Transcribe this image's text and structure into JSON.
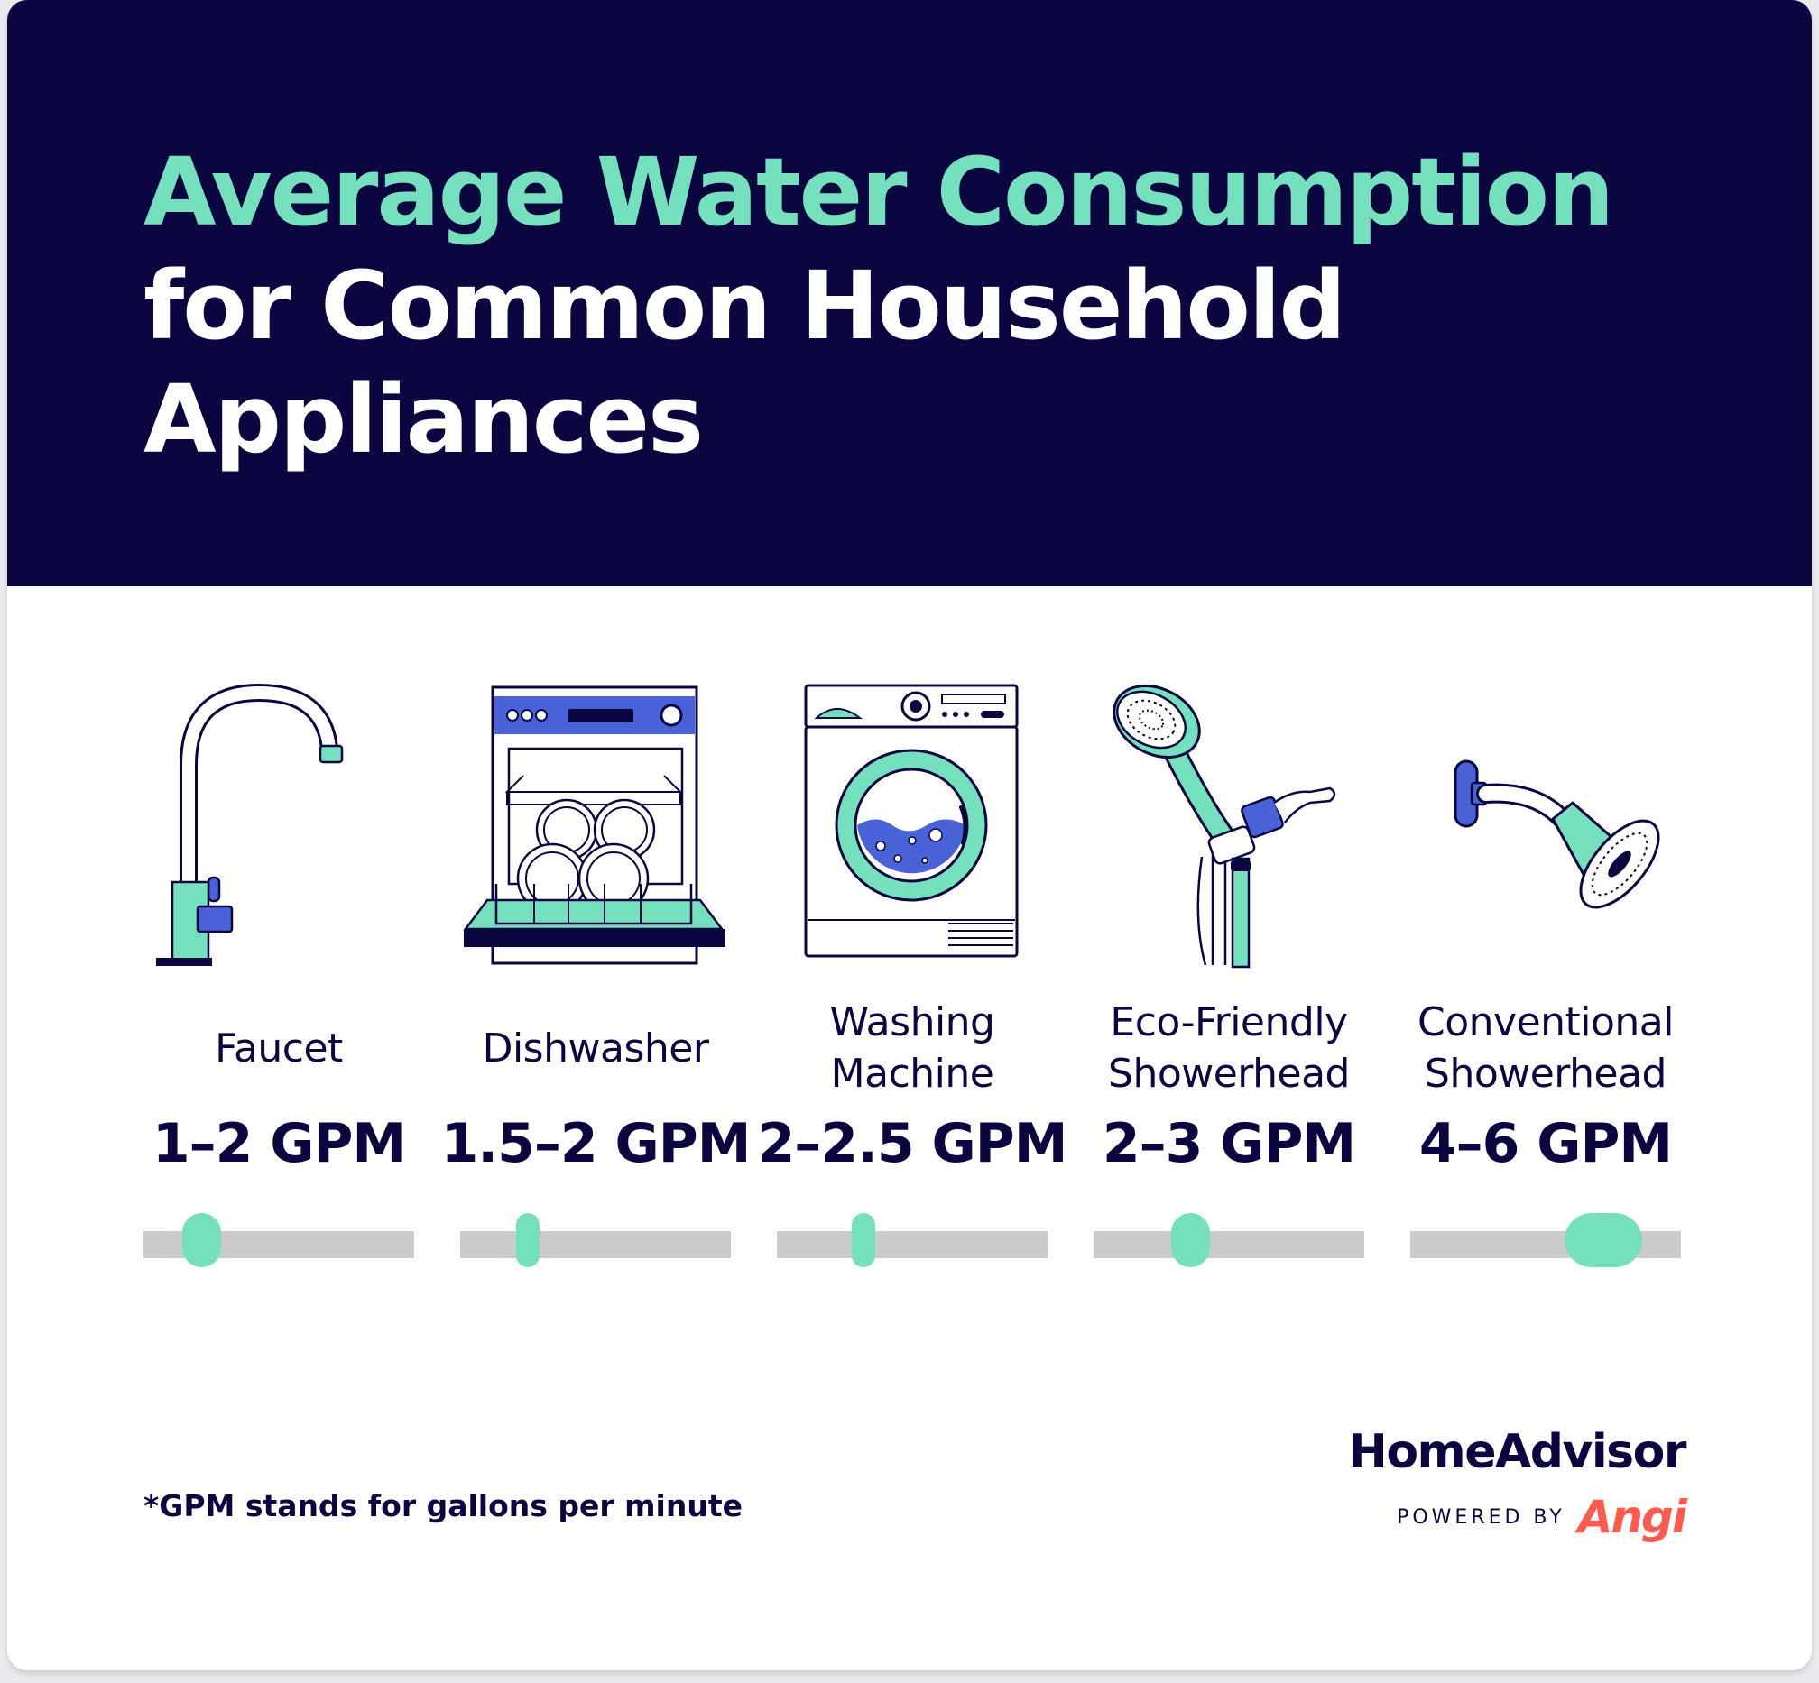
{
  "title": {
    "line1": "Average Water Consumption",
    "line2": "for Common Household",
    "line3": "Appliances"
  },
  "appliances": [
    {
      "name": "Faucet",
      "rate": "1–2 GPM",
      "icon": "faucet-icon",
      "min_gpm": 1,
      "max_gpm": 2
    },
    {
      "name": "Dishwasher",
      "rate": "1.5–2 GPM",
      "icon": "dishwasher-icon",
      "min_gpm": 1.5,
      "max_gpm": 2
    },
    {
      "name": "Washing\nMachine",
      "rate": "2–2.5 GPM",
      "icon": "washing-machine-icon",
      "min_gpm": 2,
      "max_gpm": 2.5
    },
    {
      "name": "Eco-Friendly\nShowerhead",
      "rate": "2–3 GPM",
      "icon": "handheld-showerhead-icon",
      "min_gpm": 2,
      "max_gpm": 3
    },
    {
      "name": "Conventional\nShowerhead",
      "rate": "4–6 GPM",
      "icon": "fixed-showerhead-icon",
      "min_gpm": 4,
      "max_gpm": 6
    }
  ],
  "footnote": "*GPM stands for gallons per minute",
  "brand": {
    "name": "HomeAdvisor",
    "powered_by": "POWERED BY",
    "partner": "Angi"
  },
  "colors": {
    "navy": "#0b0640",
    "mint": "#75e0bd",
    "blue": "#4a62d8",
    "track": "#cbcbcb",
    "angi_red": "#ff5a4f"
  }
}
